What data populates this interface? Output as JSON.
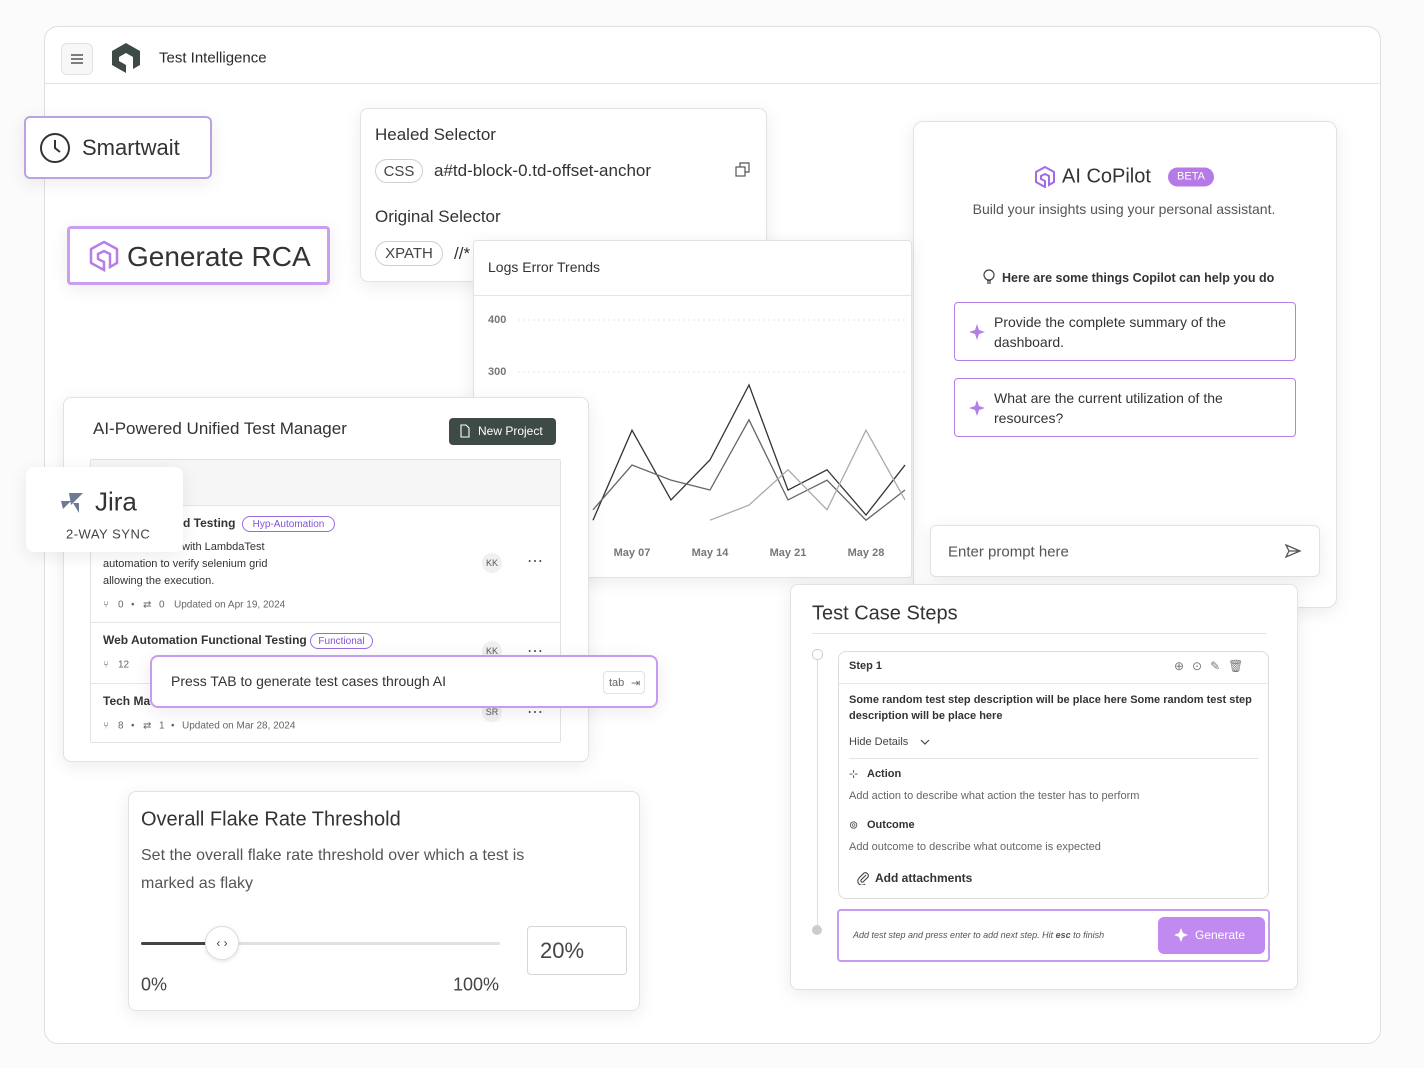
{
  "header": {
    "title": "Test Intelligence"
  },
  "smartwait": {
    "label": "Smartwait"
  },
  "generate_rca": {
    "label": "Generate RCA"
  },
  "selectors": {
    "healed": {
      "title": "Healed Selector",
      "type": "CSS",
      "value": "a#td-block-0.td-offset-anchor"
    },
    "original": {
      "title": "Original Selector",
      "type": "XPATH",
      "value": "//*"
    }
  },
  "logs_chart": {
    "type": "line",
    "title": "Logs Error Trends",
    "categories": [
      null,
      "May 07",
      null,
      "May 14",
      null,
      "May 21",
      null,
      "May 28",
      null
    ],
    "ylim": [
      0,
      450
    ],
    "yticks": [
      400,
      300
    ],
    "grid": true,
    "series": [
      {
        "color": "#333333",
        "values": [
          15,
          188,
          54,
          131,
          275,
          73,
          112,
          25,
          121
        ]
      },
      {
        "color": "#666666",
        "values": [
          35,
          121,
          92,
          73,
          208,
          54,
          92,
          15,
          73
        ]
      },
      {
        "color": "#aaaaaa",
        "values": [
          null,
          null,
          null,
          15,
          44,
          112,
          35,
          188,
          54
        ]
      }
    ]
  },
  "test_manager": {
    "title": "AI-Powered Unified Test Manager",
    "new_project": "New Project",
    "projects": [
      {
        "title": "d Testing",
        "tag": "Hyp-Automation",
        "description": "with LambdaTest automation to verify selenium grid allowing the execution.",
        "branches": 0,
        "runs": 0,
        "updated": "Updated on Apr 19, 2024",
        "owner": "KK"
      },
      {
        "title": "Web Automation Functional Testing",
        "tag": "Functional",
        "branches": 12,
        "owner": "KK"
      },
      {
        "title": "Tech Ma",
        "branches": 8,
        "runs": 1,
        "updated": "Updated on Mar 28, 2024",
        "owner": "SR"
      }
    ]
  },
  "jira": {
    "name": "Jira",
    "subtitle": "2-WAY SYNC"
  },
  "tab_hint": {
    "text": "Press TAB to generate test cases through AI",
    "key": "tab"
  },
  "copilot": {
    "title": "AI CoPilot",
    "badge": "BETA",
    "subtitle": "Build your insights using your personal assistant.",
    "hint": "Here are some things Copilot can help you do",
    "suggestions": [
      "Provide the complete summary of the dashboard.",
      "What are the current utilization of the resources?"
    ],
    "placeholder": "Enter prompt here"
  },
  "flake": {
    "title": "Overall Flake Rate Threshold",
    "description": "Set the overall flake rate threshold over which a test is marked as flaky",
    "min": "0%",
    "max": "100%",
    "value": "20%"
  },
  "steps": {
    "title": "Test Case Steps",
    "step": "Step 1",
    "description": "Some random test step description will be place here Some random test step description will be place here",
    "hide_details": "Hide Details",
    "action_label": "Action",
    "action_text": "Add action to describe what action the tester has to perform",
    "outcome_label": "Outcome",
    "outcome_text": "Add outcome to describe what outcome is expected",
    "attachments": "Add attachments",
    "input_before": "Add test step and press enter to add next step. Hit ",
    "input_key": "esc",
    "input_after": " to finish",
    "generate": "Generate"
  }
}
